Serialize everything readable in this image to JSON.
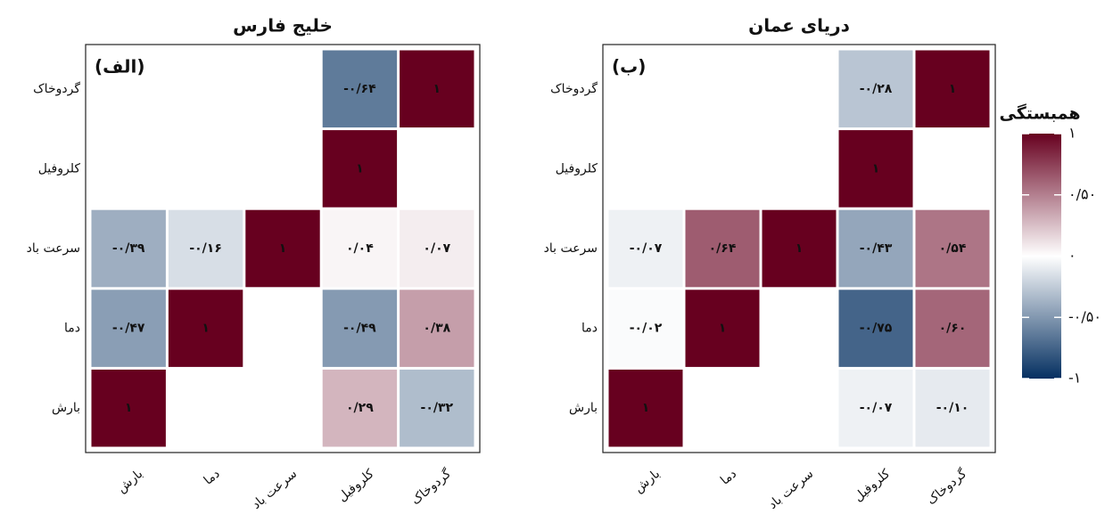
{
  "chart_data": [
    {
      "type": "heatmap",
      "title": "خلیج فارس",
      "panel_label": "(الف)",
      "x_categories": [
        "بارش",
        "دما",
        "سرعت باد",
        "کلروفیل",
        "گردوخاک"
      ],
      "y_categories": [
        "گردوخاک",
        "کلروفیل",
        "سرعت باد",
        "دما",
        "بارش"
      ],
      "values": [
        [
          null,
          null,
          null,
          -0.64,
          1
        ],
        [
          null,
          null,
          null,
          1,
          null
        ],
        [
          -0.39,
          -0.16,
          1,
          0.04,
          0.07
        ],
        [
          -0.47,
          1,
          null,
          -0.49,
          0.38
        ],
        [
          1,
          null,
          null,
          0.29,
          -0.32
        ]
      ],
      "value_labels": [
        [
          null,
          null,
          null,
          "-۰/۶۴",
          "۱"
        ],
        [
          null,
          null,
          null,
          "۱",
          null
        ],
        [
          "-۰/۳۹",
          "-۰/۱۶",
          "۱",
          "۰/۰۴",
          "۰/۰۷"
        ],
        [
          "-۰/۴۷",
          "۱",
          null,
          "-۰/۴۹",
          "۰/۳۸"
        ],
        [
          "۱",
          null,
          null,
          "۰/۲۹",
          "-۰/۳۲"
        ]
      ],
      "zlim": [
        -1,
        1
      ],
      "colors": [
        "#053061",
        "#ffffff",
        "#67001f"
      ]
    },
    {
      "type": "heatmap",
      "title": "دریای عمان",
      "panel_label": "(ب)",
      "x_categories": [
        "بارش",
        "دما",
        "سرعت باد",
        "کلروفیل",
        "گردوخاک"
      ],
      "y_categories": [
        "گردوخاک",
        "کلروفیل",
        "سرعت باد",
        "دما",
        "بارش"
      ],
      "values": [
        [
          null,
          null,
          null,
          -0.28,
          1
        ],
        [
          null,
          null,
          null,
          1,
          null
        ],
        [
          -0.07,
          0.64,
          1,
          -0.43,
          0.54
        ],
        [
          -0.02,
          1,
          null,
          -0.75,
          0.6
        ],
        [
          1,
          null,
          null,
          -0.07,
          -0.1
        ]
      ],
      "value_labels": [
        [
          null,
          null,
          null,
          "-۰/۲۸",
          "۱"
        ],
        [
          null,
          null,
          null,
          "۱",
          null
        ],
        [
          "-۰/۰۷",
          "۰/۶۴",
          "۱",
          "-۰/۴۳",
          "۰/۵۴"
        ],
        [
          "-۰/۰۲",
          "۱",
          null,
          "-۰/۷۵",
          "۰/۶۰"
        ],
        [
          "۱",
          null,
          null,
          "-۰/۰۷",
          "-۰/۱۰"
        ]
      ],
      "zlim": [
        -1,
        1
      ],
      "colors": [
        "#053061",
        "#ffffff",
        "#67001f"
      ],
      "colorbar": {
        "title": "همبستگی",
        "ticks": [
          {
            "value": 1,
            "label": "۱"
          },
          {
            "value": 0.5,
            "label": "۰/۵۰"
          },
          {
            "value": 0,
            "label": "۰"
          },
          {
            "value": -0.5,
            "label": "-۰/۵۰"
          },
          {
            "value": -1,
            "label": "-۱"
          }
        ]
      }
    }
  ]
}
